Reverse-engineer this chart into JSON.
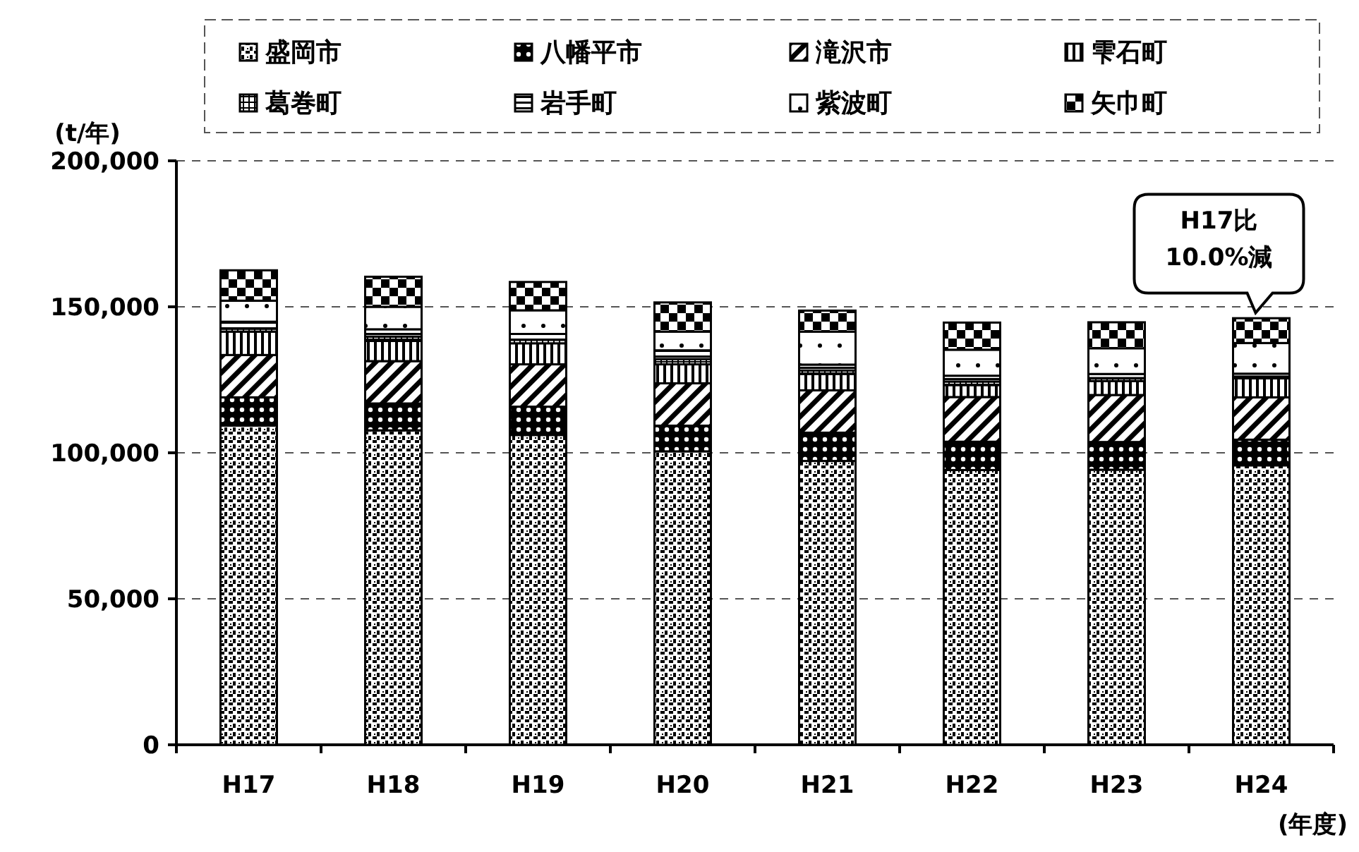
{
  "chart_data": {
    "type": "bar",
    "stacked": true,
    "ylabel": "(t/年)",
    "xlabel": "(年度)",
    "categories": [
      "H17",
      "H18",
      "H19",
      "H20",
      "H21",
      "H22",
      "H23",
      "H24"
    ],
    "series": [
      {
        "name": "盛岡市",
        "color": "#000000",
        "values": [
          109300,
          107700,
          106100,
          100500,
          97200,
          94100,
          94200,
          95700
        ]
      },
      {
        "name": "八幡平市",
        "color": "#000000",
        "values": [
          9700,
          9200,
          9700,
          8800,
          9700,
          9700,
          9500,
          8800
        ]
      },
      {
        "name": "滝沢市",
        "color": "#000000",
        "values": [
          14500,
          14500,
          14500,
          14500,
          14500,
          15300,
          16100,
          14500
        ]
      },
      {
        "name": "雫石町",
        "color": "#000000",
        "values": [
          8000,
          6900,
          7200,
          6500,
          5600,
          4100,
          4800,
          6500
        ]
      },
      {
        "name": "葛巻町",
        "color": "#000000",
        "values": [
          1000,
          1500,
          1200,
          1800,
          1200,
          1200,
          1000,
          600
        ]
      },
      {
        "name": "岩手町",
        "color": "#000000",
        "values": [
          2400,
          2500,
          2000,
          3000,
          2000,
          2000,
          1400,
          1000
        ]
      },
      {
        "name": "紫波町",
        "color": "#000000",
        "values": [
          7200,
          7700,
          8100,
          6400,
          11300,
          8900,
          8800,
          10500
        ]
      },
      {
        "name": "矢巾町",
        "color": "#000000",
        "values": [
          10400,
          10300,
          9700,
          10000,
          7200,
          9300,
          8900,
          8500
        ]
      }
    ],
    "ylim": [
      0,
      200000
    ],
    "yticks": [
      {
        "value": 0,
        "label": "0"
      },
      {
        "value": 50000,
        "label": "50,000"
      },
      {
        "value": 100000,
        "label": "100,000"
      },
      {
        "value": 150000,
        "label": "150,000"
      },
      {
        "value": 200000,
        "label": "200,000"
      }
    ],
    "grid": "y",
    "legend": "top",
    "annotations": [
      {
        "text": "H17比 10.0%減",
        "x": "H24",
        "y": 146000
      }
    ]
  }
}
